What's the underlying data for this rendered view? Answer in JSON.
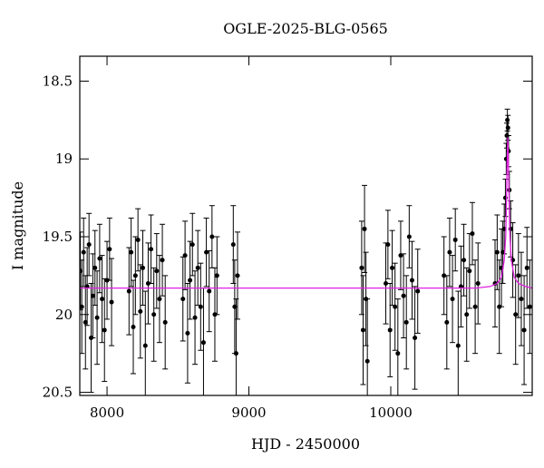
{
  "chart_data": {
    "type": "scatter",
    "title": "OGLE-2025-BLG-0565",
    "x_label": "HJD - 2450000",
    "y_label": "I magnitude",
    "xlim": [
      7808,
      10997
    ],
    "ylim": [
      20.52,
      18.34
    ],
    "xticks": [
      8000,
      9000,
      10000
    ],
    "yticks": [
      18.5,
      19,
      19.5,
      20,
      20.5
    ],
    "series": [
      {
        "color": "#000000",
        "x": [
          7812,
          7822,
          7835,
          7848,
          7860,
          7873,
          7888,
          7900,
          7915,
          7930,
          7948,
          7965,
          7982,
          8000,
          8018,
          8032,
          8155,
          8170,
          8185,
          8200,
          8218,
          8235,
          8252,
          8270,
          8290,
          8310,
          8330,
          8350,
          8370,
          8390,
          8410,
          8535,
          8550,
          8568,
          8585,
          8602,
          8620,
          8640,
          8660,
          8680,
          8700,
          8720,
          8740,
          8760,
          8775,
          8890,
          8900,
          8910,
          8920,
          9795,
          9805,
          9815,
          9825,
          9835,
          9965,
          9980,
          9995,
          10010,
          10030,
          10050,
          10070,
          10090,
          10110,
          10130,
          10150,
          10170,
          10190,
          10375,
          10395,
          10415,
          10435,
          10455,
          10475,
          10495,
          10515,
          10535,
          10555,
          10575,
          10595,
          10615,
          10735,
          10750,
          10765,
          10780,
          10790,
          10800,
          10808,
          10814,
          10818,
          10822,
          10826,
          10830,
          10836,
          10845,
          10860,
          10880,
          10900,
          10920,
          10940,
          10960,
          10980
        ],
        "values": [
          19.72,
          19.95,
          19.6,
          20.05,
          19.82,
          19.55,
          20.15,
          19.88,
          19.7,
          20.02,
          19.64,
          19.9,
          20.1,
          19.78,
          19.58,
          19.92,
          19.85,
          19.6,
          20.08,
          19.75,
          19.52,
          19.98,
          19.7,
          20.2,
          19.8,
          19.58,
          20.0,
          19.72,
          19.9,
          19.65,
          20.05,
          19.9,
          19.62,
          20.12,
          19.78,
          19.55,
          20.02,
          19.7,
          19.95,
          20.18,
          19.6,
          19.85,
          19.5,
          20.0,
          19.75,
          19.55,
          19.95,
          20.25,
          19.75,
          19.7,
          20.1,
          19.45,
          19.9,
          20.3,
          19.8,
          19.55,
          20.1,
          19.7,
          19.95,
          20.25,
          19.62,
          19.88,
          20.05,
          19.5,
          19.78,
          20.15,
          19.85,
          19.75,
          20.05,
          19.6,
          19.9,
          19.52,
          20.2,
          19.82,
          19.65,
          20.0,
          19.72,
          19.48,
          19.95,
          19.8,
          19.8,
          19.6,
          19.95,
          19.7,
          19.6,
          19.45,
          19.25,
          19.0,
          18.85,
          18.75,
          18.8,
          18.95,
          19.2,
          19.45,
          19.65,
          20.0,
          19.75,
          19.9,
          20.1,
          19.7,
          19.95
        ],
        "errors": [
          0.25,
          0.3,
          0.22,
          0.3,
          0.25,
          0.2,
          0.35,
          0.27,
          0.24,
          0.3,
          0.22,
          0.28,
          0.33,
          0.25,
          0.2,
          0.28,
          0.28,
          0.22,
          0.3,
          0.25,
          0.2,
          0.3,
          0.24,
          0.35,
          0.26,
          0.22,
          0.3,
          0.24,
          0.28,
          0.23,
          0.3,
          0.27,
          0.22,
          0.32,
          0.25,
          0.2,
          0.3,
          0.24,
          0.28,
          0.35,
          0.22,
          0.26,
          0.2,
          0.3,
          0.25,
          0.25,
          0.3,
          0.35,
          0.28,
          0.3,
          0.35,
          0.28,
          0.3,
          0.4,
          0.26,
          0.22,
          0.3,
          0.24,
          0.28,
          0.35,
          0.22,
          0.27,
          0.3,
          0.2,
          0.25,
          0.33,
          0.27,
          0.25,
          0.3,
          0.22,
          0.28,
          0.2,
          0.35,
          0.26,
          0.23,
          0.3,
          0.24,
          0.2,
          0.3,
          0.26,
          0.28,
          0.24,
          0.3,
          0.25,
          0.2,
          0.16,
          0.12,
          0.1,
          0.08,
          0.07,
          0.08,
          0.1,
          0.12,
          0.18,
          0.24,
          0.32,
          0.27,
          0.3,
          0.35,
          0.26,
          0.3
        ]
      },
      {
        "color": "#e020e0",
        "x": [
          7808,
          10600,
          10700,
          10750,
          10780,
          10800,
          10810,
          10815,
          10820,
          10825,
          10830,
          10835,
          10840,
          10850,
          10870,
          10900,
          10950,
          10997
        ],
        "values": [
          19.83,
          19.83,
          19.82,
          19.8,
          19.76,
          19.65,
          19.5,
          19.3,
          19.05,
          18.86,
          19.05,
          19.3,
          19.5,
          19.65,
          19.76,
          19.8,
          19.82,
          19.83
        ]
      }
    ]
  }
}
